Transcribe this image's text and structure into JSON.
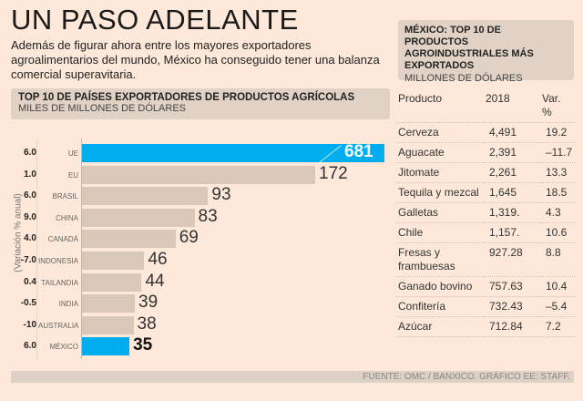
{
  "title": "UN PASO ADELANTE",
  "intro": "Además de figurar ahora entre los mayores exportadores agroalimentarios del mundo, México ha conseguido tener una balanza comercial superavitaria.",
  "chart_data": {
    "type": "bar",
    "title": "TOP 10 DE PAÍSES EXPORTADORES DE PRODUCTOS AGRÍCOLAS",
    "subtitle": "MILES DE MILLONES DE DÓLARES",
    "ylabel": "(Variación % anual)",
    "categories": [
      "UE",
      "EU",
      "BRASIL",
      "CHINA",
      "CANADÁ",
      "INDONESIA",
      "TAILANDIA",
      "INDIA",
      "AUSTRALIA",
      "MÉXICO"
    ],
    "values": [
      681,
      172,
      93,
      83,
      69,
      46,
      44,
      39,
      38,
      35
    ],
    "variation": [
      "6.0",
      "1.0",
      "6.0",
      "9.0",
      "4.0",
      "-7.0",
      "0.4",
      "-0.5",
      "-10",
      "6.0"
    ],
    "highlight": [
      "UE",
      "MÉXICO"
    ],
    "colors": {
      "highlight": "#00aeef",
      "default": "#d9c7b7"
    },
    "broken_axis_bar": "UE"
  },
  "table": {
    "title": "MÉXICO: TOP 10 DE PRODUCTOS AGROINDUSTRIALES MÁS EXPORTADOS",
    "subtitle": "MILLONES DE DÓLARES",
    "headers": [
      "Producto",
      "2018",
      "Var. %"
    ],
    "rows": [
      [
        "Cerveza",
        "4,491",
        "19.2"
      ],
      [
        "Aguacate",
        "2,391",
        "–11.7"
      ],
      [
        "Jitomate",
        "2,261",
        "13.3"
      ],
      [
        "Tequila y mezcal",
        "1,645",
        "18.5"
      ],
      [
        "Galletas",
        "1,319.",
        "4.3"
      ],
      [
        "Chile",
        "1,157.",
        "10.6"
      ],
      [
        "Fresas y frambuesas",
        "927.28",
        "8.8"
      ],
      [
        "Ganado bovino",
        "757.63",
        "10.4"
      ],
      [
        "Confitería",
        "732.43",
        "–5.4"
      ],
      [
        "Azúcar",
        "712.84",
        "7.2"
      ]
    ]
  },
  "source": "FUENTE: OMC / BANXICO. GRÁFICO EE: STAFF."
}
